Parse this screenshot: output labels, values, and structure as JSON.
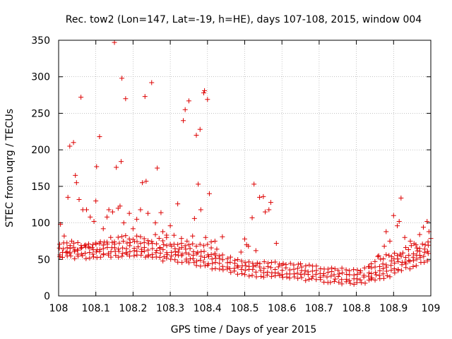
{
  "chart_data": {
    "type": "scatter",
    "title": "Rec. tow2 (Lon=147, Lat=-19, h=HE), days 107-108, 2015, window 004",
    "xlabel": "GPS time / Days of year 2015",
    "ylabel": "STEC from uqrg / TECUs",
    "xlim": [
      108,
      109
    ],
    "ylim": [
      0,
      350
    ],
    "xticks": [
      108,
      108.1,
      108.2,
      108.3,
      108.4,
      108.5,
      108.6,
      108.7,
      108.8,
      108.9,
      109
    ],
    "yticks": [
      0,
      50,
      100,
      150,
      200,
      250,
      300,
      350
    ],
    "grid": true,
    "legend": "none",
    "marker": "plus",
    "color": "#dd0000",
    "outliers": [
      [
        108.005,
        98
      ],
      [
        108.015,
        82
      ],
      [
        108.025,
        135
      ],
      [
        108.03,
        205
      ],
      [
        108.035,
        75
      ],
      [
        108.04,
        210
      ],
      [
        108.045,
        165
      ],
      [
        108.048,
        155
      ],
      [
        108.055,
        132
      ],
      [
        108.06,
        272
      ],
      [
        108.065,
        118
      ],
      [
        108.075,
        118
      ],
      [
        108.085,
        108
      ],
      [
        108.095,
        102
      ],
      [
        108.1,
        130
      ],
      [
        108.102,
        177
      ],
      [
        108.11,
        218
      ],
      [
        108.12,
        92
      ],
      [
        108.13,
        108
      ],
      [
        108.135,
        118
      ],
      [
        108.145,
        115
      ],
      [
        108.15,
        347
      ],
      [
        108.155,
        176
      ],
      [
        108.16,
        120
      ],
      [
        108.165,
        123
      ],
      [
        108.168,
        184
      ],
      [
        108.17,
        298
      ],
      [
        108.175,
        100
      ],
      [
        108.18,
        270
      ],
      [
        108.19,
        113
      ],
      [
        108.2,
        92
      ],
      [
        108.21,
        105
      ],
      [
        108.22,
        118
      ],
      [
        108.225,
        155
      ],
      [
        108.232,
        273
      ],
      [
        108.235,
        157
      ],
      [
        108.24,
        113
      ],
      [
        108.25,
        292
      ],
      [
        108.26,
        100
      ],
      [
        108.265,
        175
      ],
      [
        108.275,
        114
      ],
      [
        108.28,
        88
      ],
      [
        108.29,
        80
      ],
      [
        108.3,
        96
      ],
      [
        108.31,
        83
      ],
      [
        108.32,
        126
      ],
      [
        108.33,
        72
      ],
      [
        108.335,
        240
      ],
      [
        108.34,
        255
      ],
      [
        108.345,
        75
      ],
      [
        108.35,
        267
      ],
      [
        108.36,
        82
      ],
      [
        108.365,
        106
      ],
      [
        108.37,
        220
      ],
      [
        108.375,
        153
      ],
      [
        108.38,
        228
      ],
      [
        108.382,
        118
      ],
      [
        108.39,
        278
      ],
      [
        108.392,
        281
      ],
      [
        108.395,
        80
      ],
      [
        108.4,
        269
      ],
      [
        108.405,
        140
      ],
      [
        108.41,
        74
      ],
      [
        108.42,
        75
      ],
      [
        108.425,
        64
      ],
      [
        108.44,
        81
      ],
      [
        108.49,
        60
      ],
      [
        108.5,
        78
      ],
      [
        108.505,
        70
      ],
      [
        108.51,
        68
      ],
      [
        108.52,
        107
      ],
      [
        108.525,
        153
      ],
      [
        108.53,
        62
      ],
      [
        108.54,
        135
      ],
      [
        108.55,
        136
      ],
      [
        108.555,
        115
      ],
      [
        108.565,
        118
      ],
      [
        108.57,
        128
      ],
      [
        108.585,
        72
      ],
      [
        108.6,
        42
      ],
      [
        108.65,
        44
      ],
      [
        108.835,
        40
      ],
      [
        108.84,
        44
      ],
      [
        108.86,
        55
      ],
      [
        108.875,
        68
      ],
      [
        108.88,
        88
      ],
      [
        108.89,
        75
      ],
      [
        108.9,
        110
      ],
      [
        108.91,
        96
      ],
      [
        108.915,
        102
      ],
      [
        108.92,
        134
      ],
      [
        108.93,
        80
      ],
      [
        108.945,
        75
      ],
      [
        108.96,
        70
      ],
      [
        108.97,
        84
      ],
      [
        108.98,
        94
      ],
      [
        108.99,
        102
      ],
      [
        108.995,
        88
      ]
    ]
  }
}
